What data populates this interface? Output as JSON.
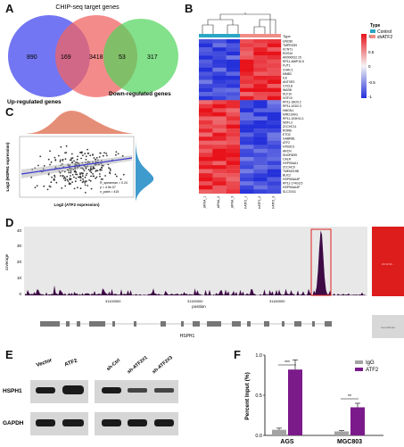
{
  "panels": {
    "A": "A",
    "B": "B",
    "C": "C",
    "D": "D",
    "E": "E",
    "F": "F"
  },
  "venn": {
    "title": "CHIP-seq target genes",
    "counts": {
      "up_only": "890",
      "up_chip": "169",
      "chip_only": "3418",
      "chip_down": "53",
      "down_only": "317"
    },
    "label_up": "Up-regulated genes",
    "label_down": "Down-regulated genes",
    "colors": {
      "up": "#5a5ef0",
      "chip": "#f06464",
      "down": "#4fd45a"
    }
  },
  "heatmap": {
    "legend_title": "Type",
    "legend_items": [
      {
        "label": "Control",
        "color": "#2aa7c6"
      },
      {
        "label": "shATF2",
        "color": "#f08d86"
      }
    ],
    "scale_ticks": [
      "1",
      "0.5",
      "0",
      "-0.5",
      "-1"
    ],
    "type_row_label": "Type",
    "genes": [
      "UNC80",
      "TMPRSS9",
      "KCNT1",
      "RGS10",
      "AR000022.15",
      "RP11-466P10.6",
      "FUT1",
      "CHAC1",
      "MMBC",
      "IL6",
      "ANTXR2",
      "CXCL8",
      "WASB",
      "KLF10",
      "VGF10",
      "RP11-18I20.2",
      "RP11-103I2.3",
      "HMGN1",
      "MIR210HG",
      "RP11-103H11.1",
      "NDFL3",
      "ZCCHC11",
      "RORB",
      "ETO2",
      "GABRB1",
      "ATF2",
      "HTB3C3",
      "ARCN",
      "SNORD59",
      "CALR",
      "HSP90AA1",
      "ZCCHC9",
      "TMEM219B",
      "BUC2",
      "HSP90AA4P",
      "RP11-174G3.5",
      "HSP90AA4P",
      "SLC37A3"
    ],
    "samples": [
      "Control_siRNA_1",
      "Control_siRNA_2",
      "Control_siRNA_3",
      "shATF2_1",
      "shATF2_2",
      "shATF2_3"
    ],
    "colors": {
      "high": "#e8121a",
      "mid": "#f4f4f4",
      "low": "#2430d9"
    }
  },
  "scatter": {
    "xlabel": "Log2 (ATF2 expression)",
    "ylabel": "Log2 (HSPH1 expression)",
    "stat_lines": [
      "R_spearman = 0.24",
      "p = 4.9e-07",
      "n_pairs = 415"
    ]
  },
  "track": {
    "ylabel": "coverage",
    "xlabel": "position",
    "yticks": [
      "40",
      "30",
      "20",
      "10",
      "0"
    ],
    "xticks": [
      "31100000",
      "31150000",
      "31160000"
    ],
    "gene": "HSPH1",
    "highlight_color": "#e02020",
    "fill_color": "#3d0a45",
    "side_label": "chr13:31...",
    "bottom_box": "GeneModel"
  },
  "western": {
    "lanes_left": [
      "Vector",
      "ATF2"
    ],
    "lanes_right": [
      "sh-Ctrl",
      "sh-ATF2#1",
      "sh-ATF2#3"
    ],
    "rows": [
      "HSPH1",
      "GAPDH"
    ]
  },
  "bar_chart_panel": {
    "ylabel": "Percent Input (%)",
    "legend": [
      {
        "label": "IgG",
        "color": "#a3a3a3"
      },
      {
        "label": "ATF2",
        "color": "#7b1a8a"
      }
    ],
    "sig_top": "***",
    "sig_bottom": "**"
  },
  "chart_data": {
    "type": "bar",
    "categories": [
      "AGS",
      "MGC803"
    ],
    "series": [
      {
        "name": "IgG",
        "values": [
          0.07,
          0.05
        ],
        "errors": [
          0.02,
          0.01
        ]
      },
      {
        "name": "ATF2",
        "values": [
          0.82,
          0.35
        ],
        "errors": [
          0.12,
          0.05
        ]
      }
    ],
    "ylabel": "Percent Input (%)",
    "ylim": [
      0,
      1.0
    ],
    "yticks": [
      "0.0",
      "0.5",
      "1.0"
    ]
  }
}
